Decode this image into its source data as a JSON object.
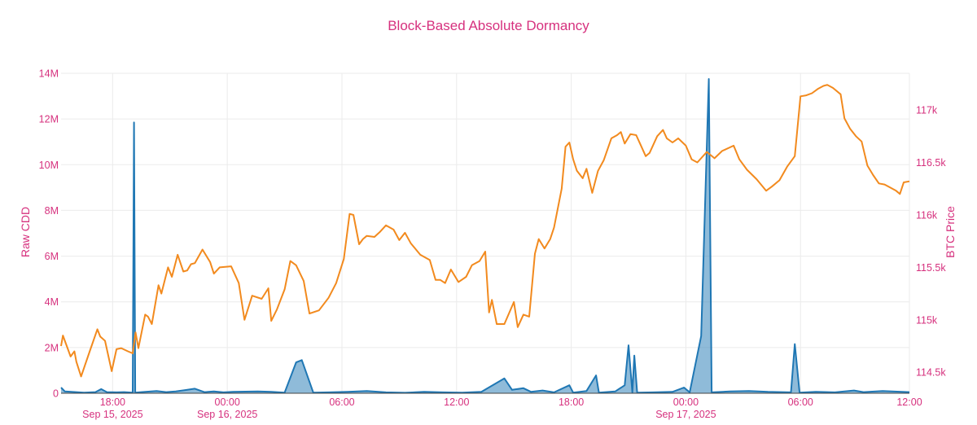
{
  "chart_data": {
    "type": "line",
    "title": "Block-Based Absolute Dormancy",
    "title_color": "#d6317e",
    "label_color": "#d6317e",
    "left_axis": {
      "label": "Raw CDD",
      "min": 0,
      "max": 14000000,
      "ticks": [
        0,
        2000000,
        4000000,
        6000000,
        8000000,
        10000000,
        12000000,
        14000000
      ],
      "tick_labels": [
        "0",
        "2M",
        "4M",
        "6M",
        "8M",
        "10M",
        "12M",
        "14M"
      ]
    },
    "right_axis": {
      "label": "BTC Price",
      "min": 114300,
      "max": 117350,
      "ticks": [
        114500,
        115000,
        115500,
        116000,
        116500,
        117000
      ],
      "tick_labels": [
        "114.5k",
        "115k",
        "115.5k",
        "116k",
        "116.5k",
        "117k"
      ]
    },
    "x_axis": {
      "min_hours": 0,
      "max_hours": 44.4,
      "ticks": [
        {
          "hours": 2.7,
          "line1": "18:00",
          "line2": "Sep 15, 2025"
        },
        {
          "hours": 8.7,
          "line1": "00:00",
          "line2": "Sep 16, 2025"
        },
        {
          "hours": 14.7,
          "line1": "06:00",
          "line2": ""
        },
        {
          "hours": 20.7,
          "line1": "12:00",
          "line2": ""
        },
        {
          "hours": 26.7,
          "line1": "18:00",
          "line2": ""
        },
        {
          "hours": 32.7,
          "line1": "00:00",
          "line2": "Sep 17, 2025"
        },
        {
          "hours": 38.7,
          "line1": "06:00",
          "line2": ""
        },
        {
          "hours": 44.4,
          "line1": "12:00",
          "line2": ""
        }
      ]
    },
    "grid": true,
    "series": [
      {
        "axis": "left",
        "color": "#1f77b4",
        "fill": true,
        "points": [
          [
            0,
            250000
          ],
          [
            0.2,
            80000
          ],
          [
            1.2,
            30000
          ],
          [
            1.8,
            50000
          ],
          [
            2.1,
            180000
          ],
          [
            2.4,
            50000
          ],
          [
            2.9,
            40000
          ],
          [
            3.3,
            50000
          ],
          [
            3.75,
            30000
          ],
          [
            3.82,
            11850000
          ],
          [
            3.88,
            30000
          ],
          [
            4.2,
            50000
          ],
          [
            5.0,
            100000
          ],
          [
            5.5,
            50000
          ],
          [
            6.0,
            80000
          ],
          [
            6.5,
            140000
          ],
          [
            7.0,
            200000
          ],
          [
            7.5,
            50000
          ],
          [
            8.0,
            80000
          ],
          [
            8.5,
            40000
          ],
          [
            9.0,
            60000
          ],
          [
            10.3,
            80000
          ],
          [
            11.0,
            60000
          ],
          [
            11.7,
            30000
          ],
          [
            12.3,
            1350000
          ],
          [
            12.6,
            1450000
          ],
          [
            13.2,
            30000
          ],
          [
            14.0,
            40000
          ],
          [
            15.0,
            60000
          ],
          [
            16.0,
            100000
          ],
          [
            17.0,
            40000
          ],
          [
            18.0,
            20000
          ],
          [
            19.0,
            60000
          ],
          [
            20.0,
            40000
          ],
          [
            21.0,
            30000
          ],
          [
            22.0,
            60000
          ],
          [
            23.2,
            650000
          ],
          [
            23.6,
            150000
          ],
          [
            24.2,
            220000
          ],
          [
            24.6,
            60000
          ],
          [
            25.2,
            120000
          ],
          [
            25.8,
            40000
          ],
          [
            26.6,
            350000
          ],
          [
            26.8,
            30000
          ],
          [
            27.5,
            100000
          ],
          [
            28.0,
            780000
          ],
          [
            28.15,
            30000
          ],
          [
            29.0,
            80000
          ],
          [
            29.5,
            350000
          ],
          [
            29.7,
            2100000
          ],
          [
            29.9,
            30000
          ],
          [
            30.0,
            1650000
          ],
          [
            30.15,
            30000
          ],
          [
            31.0,
            40000
          ],
          [
            32.0,
            60000
          ],
          [
            32.6,
            250000
          ],
          [
            32.9,
            40000
          ],
          [
            33.5,
            2500000
          ],
          [
            33.9,
            13750000
          ],
          [
            34.05,
            40000
          ],
          [
            35.0,
            80000
          ],
          [
            36.0,
            100000
          ],
          [
            37.0,
            60000
          ],
          [
            38.2,
            40000
          ],
          [
            38.4,
            2150000
          ],
          [
            38.65,
            30000
          ],
          [
            39.5,
            60000
          ],
          [
            40.5,
            40000
          ],
          [
            41.5,
            120000
          ],
          [
            42.0,
            50000
          ],
          [
            43.0,
            100000
          ],
          [
            44.0,
            60000
          ],
          [
            44.4,
            50000
          ]
        ]
      },
      {
        "axis": "right",
        "color": "#f28a1e",
        "fill": false,
        "points": [
          [
            0,
            114750
          ],
          [
            0.1,
            114850
          ],
          [
            0.3,
            114750
          ],
          [
            0.5,
            114650
          ],
          [
            0.7,
            114700
          ],
          [
            0.8,
            114600
          ],
          [
            1.05,
            114460
          ],
          [
            1.5,
            114700
          ],
          [
            1.9,
            114910
          ],
          [
            2.05,
            114840
          ],
          [
            2.3,
            114800
          ],
          [
            2.65,
            114510
          ],
          [
            2.9,
            114720
          ],
          [
            3.15,
            114730
          ],
          [
            3.5,
            114700
          ],
          [
            3.75,
            114680
          ],
          [
            3.9,
            114880
          ],
          [
            4.05,
            114730
          ],
          [
            4.4,
            115050
          ],
          [
            4.55,
            115030
          ],
          [
            4.75,
            114960
          ],
          [
            5.1,
            115330
          ],
          [
            5.25,
            115250
          ],
          [
            5.6,
            115500
          ],
          [
            5.8,
            115410
          ],
          [
            6.1,
            115620
          ],
          [
            6.4,
            115460
          ],
          [
            6.6,
            115470
          ],
          [
            6.8,
            115530
          ],
          [
            7.0,
            115540
          ],
          [
            7.4,
            115670
          ],
          [
            7.8,
            115550
          ],
          [
            8.0,
            115440
          ],
          [
            8.3,
            115500
          ],
          [
            8.9,
            115510
          ],
          [
            9.3,
            115350
          ],
          [
            9.6,
            115000
          ],
          [
            10.0,
            115230
          ],
          [
            10.5,
            115200
          ],
          [
            10.85,
            115300
          ],
          [
            11.0,
            114990
          ],
          [
            11.3,
            115100
          ],
          [
            11.7,
            115290
          ],
          [
            12.0,
            115560
          ],
          [
            12.3,
            115520
          ],
          [
            12.7,
            115370
          ],
          [
            13.0,
            115060
          ],
          [
            13.5,
            115090
          ],
          [
            14.0,
            115210
          ],
          [
            14.4,
            115350
          ],
          [
            14.8,
            115580
          ],
          [
            15.1,
            116010
          ],
          [
            15.3,
            116000
          ],
          [
            15.6,
            115720
          ],
          [
            15.8,
            115770
          ],
          [
            16.0,
            115800
          ],
          [
            16.4,
            115790
          ],
          [
            16.7,
            115840
          ],
          [
            17.0,
            115900
          ],
          [
            17.4,
            115860
          ],
          [
            17.7,
            115760
          ],
          [
            18.0,
            115830
          ],
          [
            18.3,
            115730
          ],
          [
            18.8,
            115620
          ],
          [
            19.3,
            115570
          ],
          [
            19.6,
            115380
          ],
          [
            19.85,
            115380
          ],
          [
            20.1,
            115350
          ],
          [
            20.4,
            115480
          ],
          [
            20.8,
            115360
          ],
          [
            21.2,
            115410
          ],
          [
            21.5,
            115520
          ],
          [
            21.9,
            115560
          ],
          [
            22.2,
            115650
          ],
          [
            22.4,
            115070
          ],
          [
            22.55,
            115190
          ],
          [
            22.8,
            114960
          ],
          [
            23.2,
            114960
          ],
          [
            23.7,
            115170
          ],
          [
            23.9,
            114930
          ],
          [
            24.2,
            115050
          ],
          [
            24.5,
            115030
          ],
          [
            24.8,
            115630
          ],
          [
            25.0,
            115770
          ],
          [
            25.3,
            115680
          ],
          [
            25.6,
            115770
          ],
          [
            25.8,
            115880
          ],
          [
            26.2,
            116250
          ],
          [
            26.4,
            116650
          ],
          [
            26.6,
            116690
          ],
          [
            26.8,
            116530
          ],
          [
            27.0,
            116420
          ],
          [
            27.3,
            116350
          ],
          [
            27.5,
            116440
          ],
          [
            27.8,
            116210
          ],
          [
            28.1,
            116420
          ],
          [
            28.4,
            116520
          ],
          [
            28.8,
            116730
          ],
          [
            29.1,
            116760
          ],
          [
            29.3,
            116790
          ],
          [
            29.5,
            116680
          ],
          [
            29.8,
            116770
          ],
          [
            30.1,
            116760
          ],
          [
            30.3,
            116680
          ],
          [
            30.6,
            116560
          ],
          [
            30.8,
            116590
          ],
          [
            31.2,
            116750
          ],
          [
            31.5,
            116810
          ],
          [
            31.7,
            116730
          ],
          [
            32.0,
            116690
          ],
          [
            32.3,
            116730
          ],
          [
            32.7,
            116660
          ],
          [
            33.0,
            116530
          ],
          [
            33.3,
            116500
          ],
          [
            33.8,
            116600
          ],
          [
            34.2,
            116540
          ],
          [
            34.6,
            116610
          ],
          [
            35.2,
            116660
          ],
          [
            35.5,
            116530
          ],
          [
            35.9,
            116430
          ],
          [
            36.4,
            116340
          ],
          [
            36.9,
            116230
          ],
          [
            37.2,
            116270
          ],
          [
            37.6,
            116330
          ],
          [
            38.0,
            116460
          ],
          [
            38.4,
            116560
          ],
          [
            38.7,
            117130
          ],
          [
            39.0,
            117140
          ],
          [
            39.3,
            117160
          ],
          [
            39.6,
            117200
          ],
          [
            39.9,
            117230
          ],
          [
            40.1,
            117240
          ],
          [
            40.4,
            117210
          ],
          [
            40.8,
            117150
          ],
          [
            41.0,
            116920
          ],
          [
            41.3,
            116820
          ],
          [
            41.6,
            116750
          ],
          [
            41.9,
            116700
          ],
          [
            42.2,
            116470
          ],
          [
            42.5,
            116380
          ],
          [
            42.8,
            116300
          ],
          [
            43.1,
            116290
          ],
          [
            43.4,
            116260
          ],
          [
            43.7,
            116230
          ],
          [
            43.9,
            116200
          ],
          [
            44.1,
            116310
          ],
          [
            44.4,
            116320
          ]
        ]
      }
    ]
  }
}
